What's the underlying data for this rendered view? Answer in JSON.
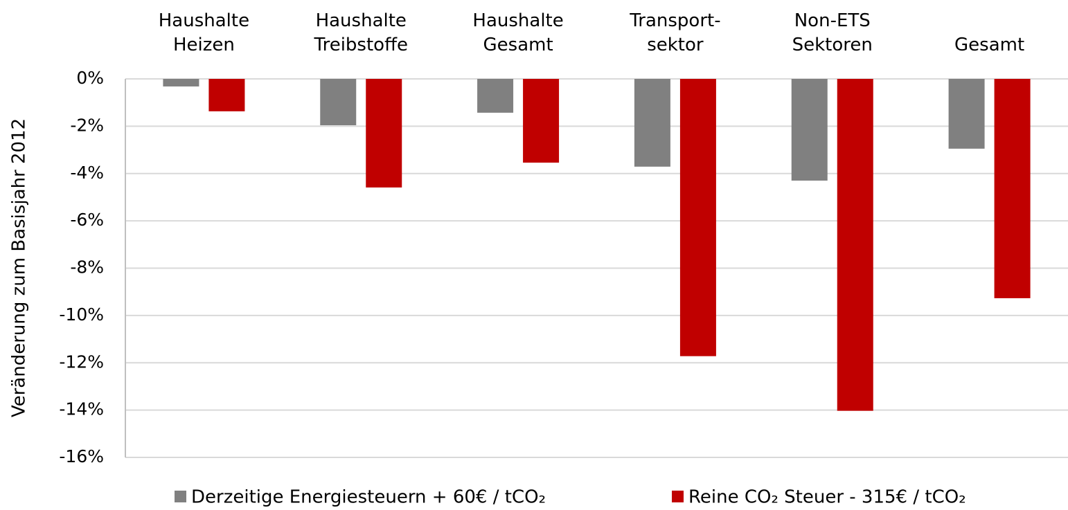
{
  "chart_data": {
    "type": "bar",
    "y_label": "Veränderung zum Basisjahr 2012",
    "categories": [
      "Haushalte\nHeizen",
      "Haushalte\nTreibstoffe",
      "Haushalte\nGesamt",
      "Transport-\nsektor",
      "Non-ETS\nSektoren",
      "Gesamt"
    ],
    "series": [
      {
        "name": "Derzeitige Energiesteuern + 60€ / tCO₂",
        "color": "#808080",
        "values": [
          -0.32,
          -1.96,
          -1.43,
          -3.71,
          -4.3,
          -2.95
        ]
      },
      {
        "name": "Reine CO₂ Steuer - 315€ / tCO₂",
        "color": "#c00000",
        "values": [
          -1.37,
          -4.59,
          -3.54,
          -11.72,
          -14.03,
          -9.27
        ]
      }
    ],
    "ylim": [
      -16,
      0
    ],
    "yticks": [
      {
        "value": 0,
        "label": "0%"
      },
      {
        "value": -2,
        "label": "-2%"
      },
      {
        "value": -4,
        "label": "-4%"
      },
      {
        "value": -6,
        "label": "-6%"
      },
      {
        "value": -8,
        "label": "-8%"
      },
      {
        "value": -10,
        "label": "-10%"
      },
      {
        "value": -12,
        "label": "-12%"
      },
      {
        "value": -14,
        "label": "-14%"
      },
      {
        "value": -16,
        "label": "-16%"
      }
    ],
    "grid": true,
    "legend": "bottom"
  }
}
